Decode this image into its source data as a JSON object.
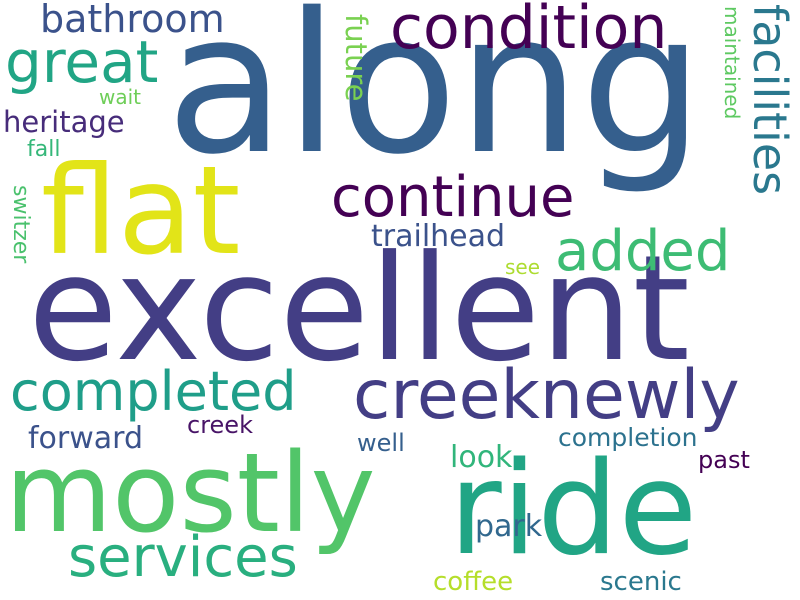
{
  "words": [
    {
      "text": "along",
      "color": "#355f8d"
    },
    {
      "text": "excellent",
      "color": "#433e85"
    },
    {
      "text": "flat",
      "color": "#e2e418"
    },
    {
      "text": "mostly",
      "color": "#52c569"
    },
    {
      "text": "ride",
      "color": "#21a585"
    },
    {
      "text": "creeknewly",
      "color": "#433e85"
    },
    {
      "text": "condition",
      "color": "#440154"
    },
    {
      "text": "continue",
      "color": "#440154"
    },
    {
      "text": "great",
      "color": "#21a585"
    },
    {
      "text": "bathroom",
      "color": "#3b528b"
    },
    {
      "text": "completed",
      "color": "#1f9e89"
    },
    {
      "text": "services",
      "color": "#29af7f"
    },
    {
      "text": "added",
      "color": "#3dbc74"
    },
    {
      "text": "facilities",
      "color": "#2a788e"
    },
    {
      "text": "heritage",
      "color": "#472c7a"
    },
    {
      "text": "trailhead",
      "color": "#3b528b"
    },
    {
      "text": "future",
      "color": "#7ad151"
    },
    {
      "text": "maintained",
      "color": "#5ec962"
    },
    {
      "text": "forward",
      "color": "#3b528b"
    },
    {
      "text": "look",
      "color": "#31b57b"
    },
    {
      "text": "park",
      "color": "#31688e"
    },
    {
      "text": "completion",
      "color": "#2c728e"
    },
    {
      "text": "past",
      "color": "#440154"
    },
    {
      "text": "creek",
      "color": "#481467"
    },
    {
      "text": "well",
      "color": "#355f8d"
    },
    {
      "text": "wait",
      "color": "#6ece58"
    },
    {
      "text": "fall",
      "color": "#35b779"
    },
    {
      "text": "switzer",
      "color": "#4ac16d"
    },
    {
      "text": "see",
      "color": "#addc30"
    },
    {
      "text": "coffee",
      "color": "#b5de2b"
    },
    {
      "text": "scenic",
      "color": "#2a788e"
    }
  ]
}
